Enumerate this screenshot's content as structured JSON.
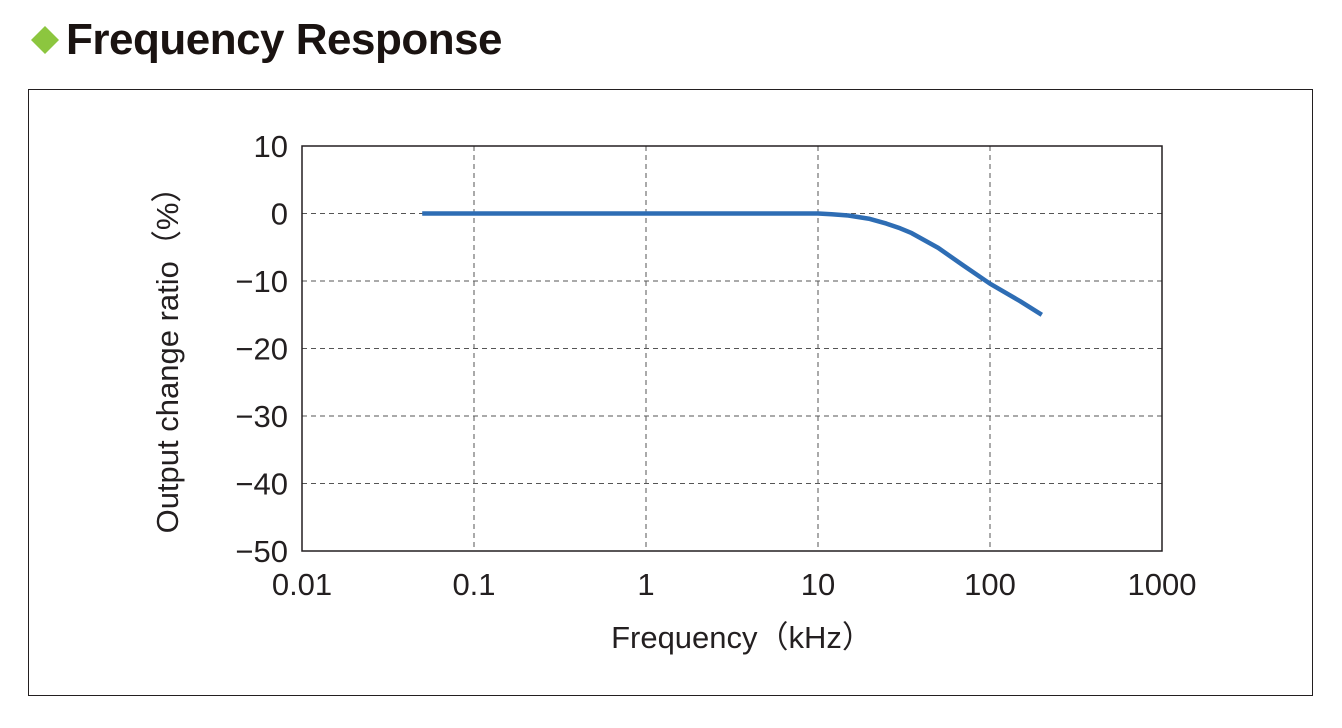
{
  "header": {
    "title": "Frequency Response",
    "bullet_color": "#8cc63f"
  },
  "chart_data": {
    "type": "line",
    "title": "Frequency Response",
    "xlabel": "Frequency（kHz）",
    "ylabel": "Output change ratio（%）",
    "xscale": "log",
    "xlim": [
      0.01,
      1000
    ],
    "ylim": [
      -50,
      10
    ],
    "xticks": [
      0.01,
      0.1,
      1,
      10,
      100,
      1000
    ],
    "xtick_labels": [
      "0.01",
      "0.1",
      "1",
      "10",
      "100",
      "1000"
    ],
    "yticks": [
      10,
      0,
      -10,
      -20,
      -30,
      -40,
      -50
    ],
    "ytick_labels": [
      "10",
      "0",
      "−10",
      "−20",
      "−30",
      "−40",
      "−50"
    ],
    "grid": true,
    "grid_style": "dashed",
    "line_color": "#2e6db4",
    "series": [
      {
        "x": [
          0.05,
          0.1,
          1,
          5,
          10,
          12,
          15,
          20,
          25,
          30,
          35,
          50,
          70,
          100,
          150,
          200
        ],
        "values": [
          0,
          0,
          0,
          0,
          0,
          -0.1,
          -0.3,
          -0.8,
          -1.5,
          -2.2,
          -2.9,
          -5.1,
          -7.7,
          -10.4,
          -13.0,
          -15.0
        ]
      }
    ]
  }
}
